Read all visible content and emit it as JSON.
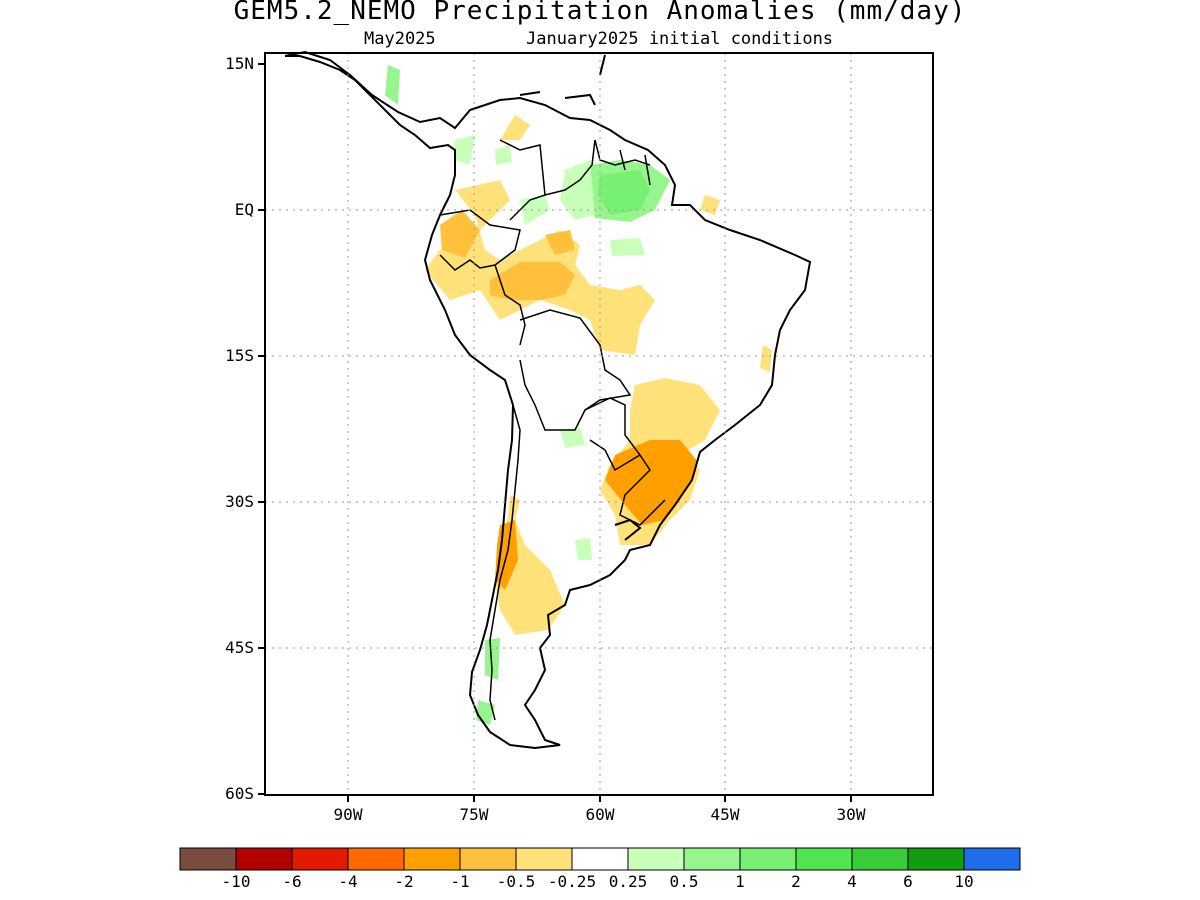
{
  "header": {
    "title": "GEM5.2_NEMO Precipitation Anomalies (mm/day)",
    "target_month": "May2025",
    "init": "January2025 initial conditions"
  },
  "axes": {
    "lat_labels": [
      "15N",
      "EQ",
      "15S",
      "30S",
      "45S",
      "60S"
    ],
    "lon_labels": [
      "90W",
      "75W",
      "60W",
      "45W",
      "30W"
    ],
    "lon_range": [
      -100,
      -20
    ],
    "lat_range": [
      -60,
      15
    ],
    "grid": "dotted"
  },
  "colorbar": {
    "colors": [
      "#7b4d41",
      "#b20000",
      "#e11a00",
      "#ff6a00",
      "#ffa000",
      "#ffc03c",
      "#ffe17a",
      "#ffffff",
      "#c8ffb9",
      "#96f58c",
      "#78f073",
      "#50e650",
      "#37cd37",
      "#109e10",
      "#1e6eeb"
    ],
    "labels": [
      "-10",
      "-6",
      "-4",
      "-2",
      "-1",
      "-0.5",
      "-0.25",
      "0.25",
      "0.5",
      "1",
      "2",
      "4",
      "6",
      "10"
    ]
  },
  "regions": [
    {
      "name": "northern-amazon-positive",
      "level": "1 to 2",
      "color": "#78f073"
    },
    {
      "name": "central-amazon-negative",
      "level": "-1 to -0.5",
      "color": "#ffc03c"
    },
    {
      "name": "southern-brazil-negative",
      "level": "-2 to -1",
      "color": "#ffa000"
    },
    {
      "name": "argentina-andes-negative",
      "level": "-1 to -0.5",
      "color": "#ffc03c"
    },
    {
      "name": "southern-chile-positive",
      "level": "0.5 to 1",
      "color": "#96f58c"
    }
  ]
}
